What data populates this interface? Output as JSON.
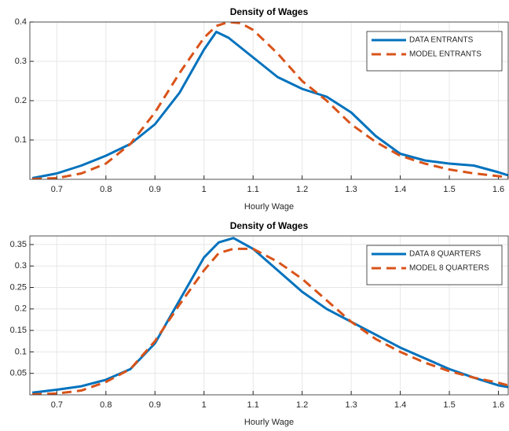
{
  "chart_data": [
    {
      "type": "line",
      "title": "Density of Wages",
      "x_label": "Hourly Wage",
      "x": [
        0.65,
        0.7,
        0.75,
        0.8,
        0.85,
        0.9,
        0.95,
        1.0,
        1.025,
        1.05,
        1.075,
        1.1,
        1.15,
        1.2,
        1.25,
        1.3,
        1.35,
        1.4,
        1.45,
        1.5,
        1.55,
        1.6,
        1.62
      ],
      "series": [
        {
          "name": "DATA ENTRANTS",
          "color": "#0072bd",
          "linestyle": "solid",
          "values": [
            0.003,
            0.015,
            0.035,
            0.06,
            0.09,
            0.14,
            0.22,
            0.33,
            0.375,
            0.36,
            0.335,
            0.31,
            0.26,
            0.23,
            0.21,
            0.17,
            0.11,
            0.065,
            0.048,
            0.04,
            0.035,
            0.018,
            0.01
          ]
        },
        {
          "name": "MODEL ENTRANTS",
          "color": "#d95319",
          "linestyle": "dashed",
          "values": [
            0.001,
            0.003,
            0.015,
            0.04,
            0.09,
            0.17,
            0.27,
            0.36,
            0.39,
            0.4,
            0.397,
            0.38,
            0.32,
            0.25,
            0.2,
            0.14,
            0.095,
            0.06,
            0.04,
            0.025,
            0.015,
            0.008,
            0.005
          ]
        }
      ],
      "xlim": [
        0.645,
        1.62
      ],
      "xticks": [
        0.7,
        0.8,
        0.9,
        1,
        1.1,
        1.2,
        1.3,
        1.4,
        1.5,
        1.6
      ],
      "ylim": [
        0,
        0.4
      ],
      "yticks": [
        0.1,
        0.2,
        0.3,
        0.4
      ],
      "grid": true,
      "legend": "northeast"
    },
    {
      "type": "line",
      "title": "Density of Wages",
      "x_label": "Hourly Wage",
      "x": [
        0.65,
        0.7,
        0.75,
        0.8,
        0.85,
        0.9,
        0.95,
        1.0,
        1.03,
        1.06,
        1.1,
        1.15,
        1.2,
        1.25,
        1.3,
        1.35,
        1.4,
        1.45,
        1.5,
        1.55,
        1.6,
        1.62
      ],
      "series": [
        {
          "name": "DATA 8 QUARTERS",
          "color": "#0072bd",
          "linestyle": "solid",
          "values": [
            0.005,
            0.012,
            0.02,
            0.035,
            0.06,
            0.12,
            0.22,
            0.32,
            0.355,
            0.365,
            0.34,
            0.29,
            0.24,
            0.2,
            0.17,
            0.14,
            0.11,
            0.085,
            0.06,
            0.04,
            0.022,
            0.018
          ]
        },
        {
          "name": "MODEL 8 QUARTERS",
          "color": "#d95319",
          "linestyle": "dashed",
          "values": [
            0.001,
            0.003,
            0.01,
            0.03,
            0.06,
            0.125,
            0.21,
            0.29,
            0.33,
            0.34,
            0.34,
            0.31,
            0.27,
            0.22,
            0.17,
            0.13,
            0.1,
            0.075,
            0.055,
            0.04,
            0.028,
            0.022
          ]
        }
      ],
      "xlim": [
        0.645,
        1.62
      ],
      "xticks": [
        0.7,
        0.8,
        0.9,
        1,
        1.1,
        1.2,
        1.3,
        1.4,
        1.5,
        1.6
      ],
      "ylim": [
        0,
        0.37
      ],
      "yticks": [
        0.05,
        0.1,
        0.15,
        0.2,
        0.25,
        0.3,
        0.35
      ],
      "grid": true,
      "legend": "northeast"
    }
  ]
}
